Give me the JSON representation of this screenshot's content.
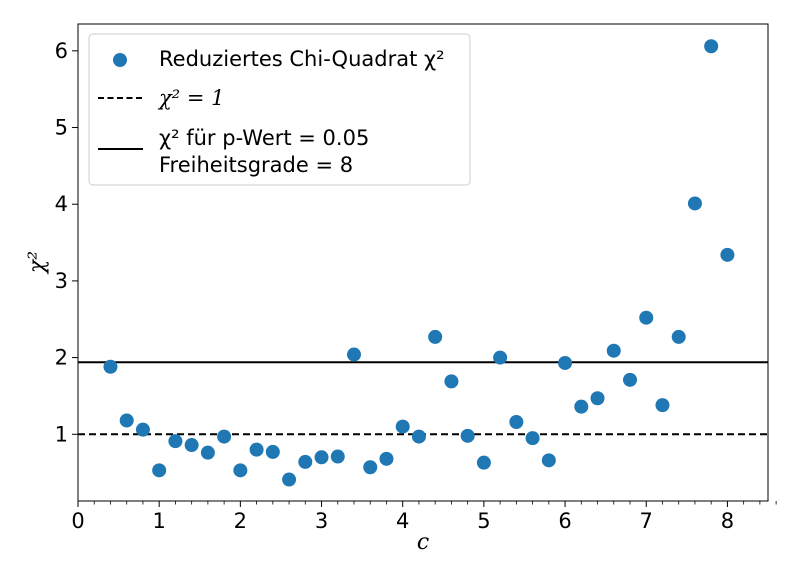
{
  "chart_data": {
    "type": "scatter",
    "xlabel": "c",
    "ylabel": "χ²",
    "xlim": [
      0,
      8.5
    ],
    "ylim": [
      0.13,
      6.35
    ],
    "xticks": [
      0,
      1,
      2,
      3,
      4,
      5,
      6,
      7,
      8
    ],
    "yticks": [
      1,
      2,
      3,
      4,
      5,
      6
    ],
    "x_minor_step": 0.2,
    "grid": false,
    "legend_position": "top-left",
    "scatter": {
      "legend": "Reduziertes Chi-Quadrat χ²",
      "color": "#1f77b4",
      "x": [
        0.4,
        0.6,
        0.8,
        1.0,
        1.2,
        1.4,
        1.6,
        1.8,
        2.0,
        2.2,
        2.4,
        2.6,
        2.8,
        3.0,
        3.2,
        3.4,
        3.6,
        3.8,
        4.0,
        4.2,
        4.4,
        4.6,
        4.8,
        5.0,
        5.2,
        5.4,
        5.6,
        5.8,
        6.0,
        6.2,
        6.4,
        6.6,
        6.8,
        7.0,
        7.2,
        7.4,
        7.6,
        7.8,
        8.0
      ],
      "y": [
        1.88,
        1.18,
        1.06,
        0.53,
        0.91,
        0.86,
        0.76,
        0.97,
        0.53,
        0.8,
        0.77,
        0.41,
        0.64,
        0.7,
        0.71,
        2.04,
        0.57,
        0.68,
        1.1,
        0.97,
        2.27,
        1.69,
        0.98,
        0.63,
        2.0,
        1.16,
        0.95,
        0.66,
        1.93,
        1.36,
        1.47,
        2.09,
        1.71,
        2.52,
        1.38,
        2.27,
        4.01,
        6.06,
        3.34
      ]
    },
    "lines": [
      {
        "legend": "χ² = 1",
        "style": "dashed",
        "y": 1.0,
        "color": "#000000"
      },
      {
        "legend_line1": "χ² für p-Wert = 0.05",
        "legend_line2": "Freiheitsgrade = 8",
        "style": "solid",
        "y": 1.94,
        "color": "#000000"
      }
    ]
  }
}
